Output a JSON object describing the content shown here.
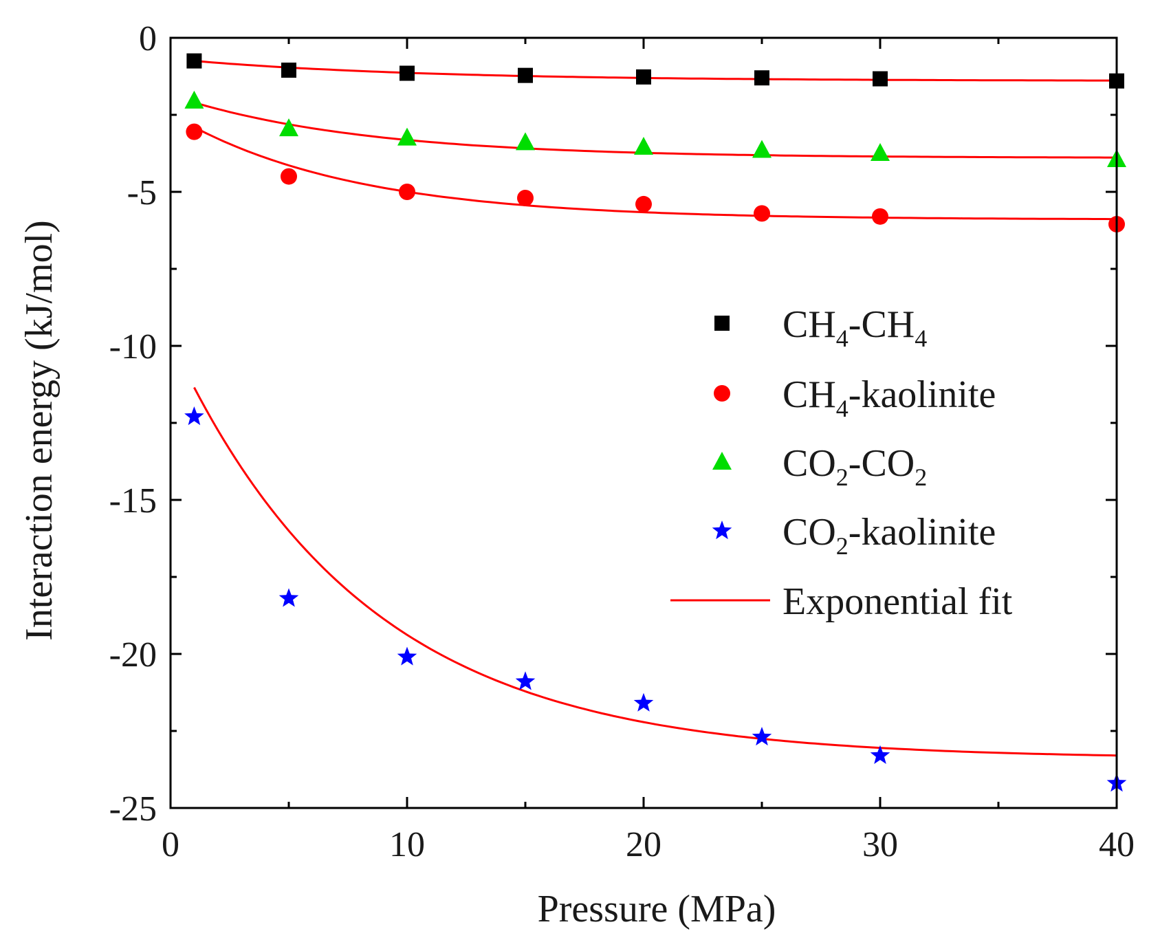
{
  "chart_data": {
    "type": "scatter",
    "xlabel": "Pressure (MPa)",
    "ylabel": "Interaction energy (kJ/mol)",
    "xlim": [
      0,
      40
    ],
    "ylim": [
      -25,
      0
    ],
    "xticks": [
      0,
      10,
      20,
      30,
      40
    ],
    "yticks": [
      0,
      -5,
      -10,
      -15,
      -20,
      -25
    ],
    "grid": false,
    "legend_position": "center-right",
    "series": [
      {
        "name": "CH4-CH4",
        "label_parts": [
          {
            "t": "CH"
          },
          {
            "t": "4",
            "sub": true
          },
          {
            "t": "-CH"
          },
          {
            "t": "4",
            "sub": true
          }
        ],
        "marker": "square",
        "color": "#000000",
        "x": [
          1,
          5,
          10,
          15,
          20,
          25,
          30,
          40
        ],
        "values": [
          -0.75,
          -1.05,
          -1.15,
          -1.22,
          -1.27,
          -1.3,
          -1.33,
          -1.4
        ],
        "fit": {
          "y0": -1.4,
          "A": 0.65,
          "t": 10
        }
      },
      {
        "name": "CH4-kaolinite",
        "label_parts": [
          {
            "t": "CH"
          },
          {
            "t": "4",
            "sub": true
          },
          {
            "t": "-kaolinite"
          }
        ],
        "marker": "circle",
        "color": "#ff0000",
        "x": [
          1,
          5,
          10,
          15,
          20,
          25,
          30,
          40
        ],
        "values": [
          -3.05,
          -4.5,
          -5.0,
          -5.2,
          -5.4,
          -5.7,
          -5.8,
          -6.05
        ],
        "fit": {
          "y0": -5.9,
          "A": 3.0,
          "t": 7.5
        }
      },
      {
        "name": "CO2-CO2",
        "label_parts": [
          {
            "t": "CO"
          },
          {
            "t": "2",
            "sub": true
          },
          {
            "t": "-CO"
          },
          {
            "t": "2",
            "sub": true
          }
        ],
        "marker": "triangle",
        "color": "#00dd00",
        "x": [
          1,
          5,
          10,
          15,
          20,
          25,
          30,
          40
        ],
        "values": [
          -2.05,
          -2.95,
          -3.25,
          -3.4,
          -3.55,
          -3.65,
          -3.75,
          -3.95
        ],
        "fit": {
          "y0": -3.9,
          "A": 1.8,
          "t": 8
        }
      },
      {
        "name": "CO2-kaolinite",
        "label_parts": [
          {
            "t": "CO"
          },
          {
            "t": "2",
            "sub": true
          },
          {
            "t": "-kaolinite"
          }
        ],
        "marker": "star",
        "color": "#0000ff",
        "x": [
          1,
          5,
          10,
          15,
          20,
          25,
          30,
          40
        ],
        "values": [
          -12.3,
          -18.2,
          -20.1,
          -20.9,
          -21.6,
          -22.7,
          -23.3,
          -24.2
        ],
        "fit": {
          "y0": -23.4,
          "A": 12.05,
          "t": 8.2
        }
      }
    ],
    "fit_line": {
      "label": "Exponential fit",
      "color": "#ff0000"
    }
  }
}
